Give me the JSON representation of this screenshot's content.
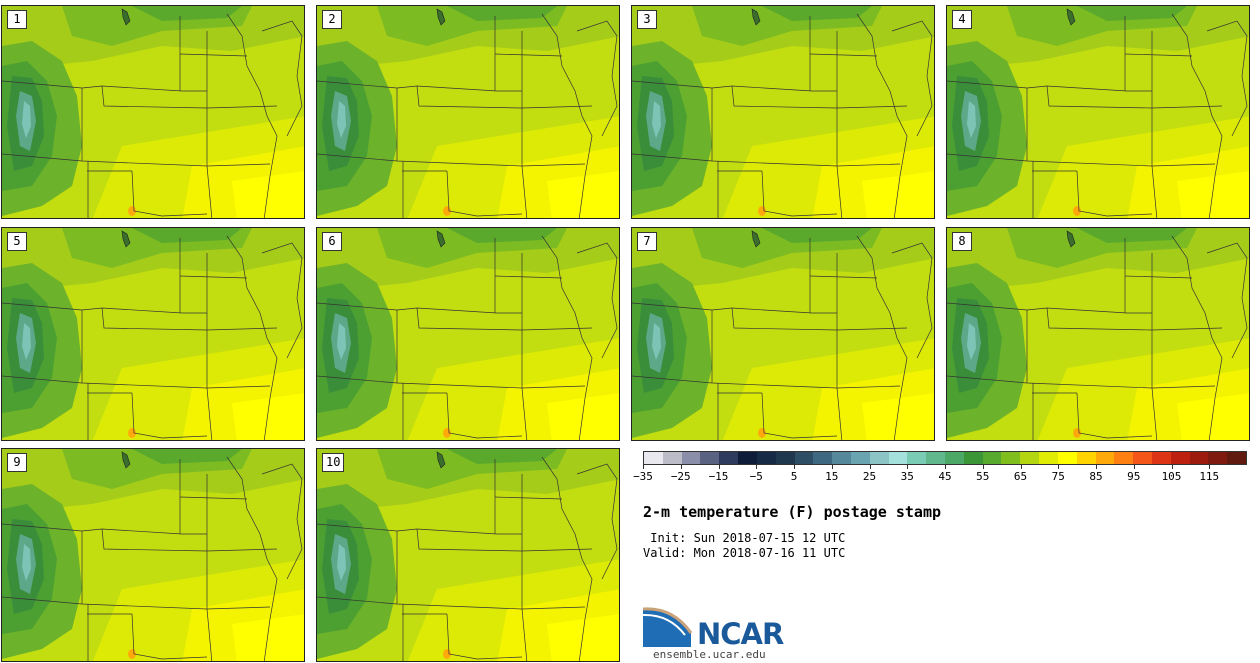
{
  "panels": [
    {
      "label": "1"
    },
    {
      "label": "2"
    },
    {
      "label": "3"
    },
    {
      "label": "4"
    },
    {
      "label": "5"
    },
    {
      "label": "6"
    },
    {
      "label": "7"
    },
    {
      "label": "8"
    },
    {
      "label": "9"
    },
    {
      "label": "10"
    }
  ],
  "colorbar": {
    "colors": [
      "#e8e8ee",
      "#bcbcc8",
      "#8a8ea8",
      "#5a6282",
      "#2e3a5e",
      "#0e1c3a",
      "#162a46",
      "#20384e",
      "#2e4e66",
      "#3e6882",
      "#56889c",
      "#6aa4b0",
      "#8cc4c6",
      "#a4e0dc",
      "#7accb4",
      "#60b88c",
      "#4ca866",
      "#3a9636",
      "#58aa2e",
      "#80be1e",
      "#b4d610",
      "#e0ec04",
      "#ffff00",
      "#ffd400",
      "#ffaa0a",
      "#ff8012",
      "#f4561a",
      "#dc3414",
      "#be2010",
      "#9c1a0e",
      "#7e1a10",
      "#601a10"
    ],
    "ticks": [
      "−35",
      "−25",
      "−15",
      "−5",
      "5",
      "15",
      "25",
      "35",
      "45",
      "55",
      "65",
      "75",
      "85",
      "95",
      "105",
      "115"
    ]
  },
  "title": "2-m temperature (F) postage stamp",
  "init_line": " Init: Sun 2018-07-15 12 UTC",
  "valid_line": "Valid: Mon 2018-07-16 11 UTC",
  "logo": {
    "name": "NCAR",
    "url": "ensemble.ucar.edu"
  }
}
